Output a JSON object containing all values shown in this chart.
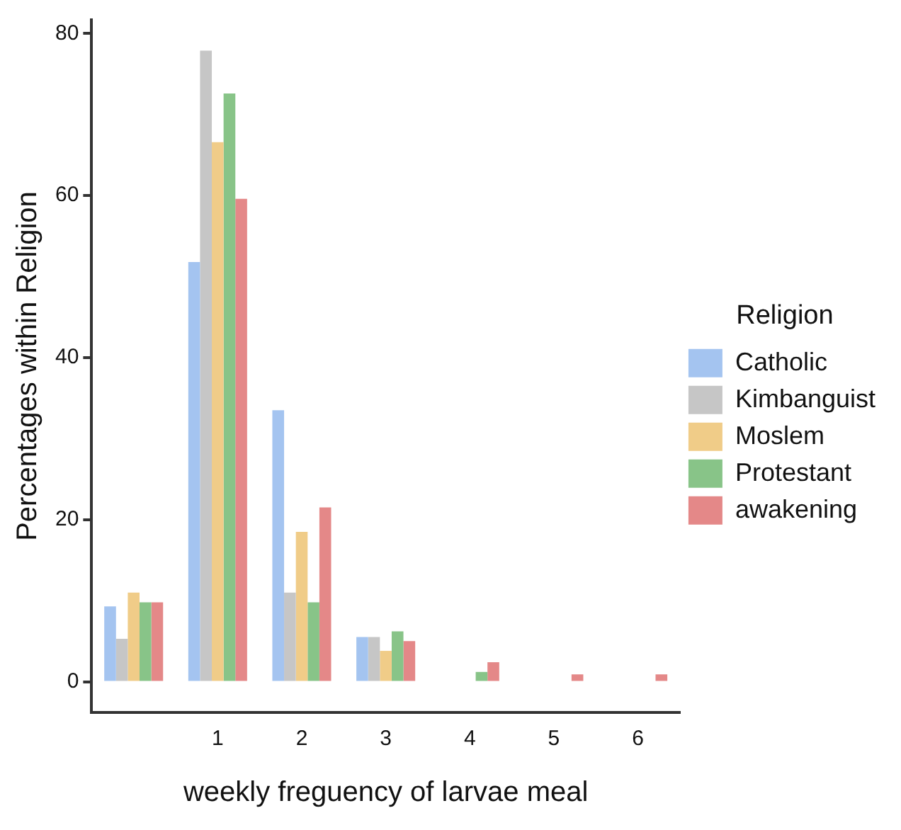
{
  "chart_data": {
    "type": "bar",
    "xlabel": "weekly freguency of larvae meal",
    "ylabel": "Percentages within Religion",
    "legend_title": "Religion",
    "categories": [
      null,
      "1",
      "2",
      "3",
      "4",
      "5",
      "6"
    ],
    "series": [
      {
        "name": "Catholic",
        "color": "#a4c4f0",
        "values": [
          9.3,
          51.8,
          33.5,
          5.5,
          null,
          null,
          null
        ]
      },
      {
        "name": "Kimbanguist",
        "color": "#c6c6c6",
        "values": [
          5.3,
          77.9,
          11,
          5.5,
          null,
          null,
          null
        ]
      },
      {
        "name": "Moslem",
        "color": "#f0cc88",
        "values": [
          11,
          66.6,
          18.5,
          3.8,
          null,
          null,
          null
        ]
      },
      {
        "name": "Protestant",
        "color": "#88c488",
        "values": [
          9.8,
          72.6,
          9.8,
          6.2,
          1.2,
          null,
          null
        ]
      },
      {
        "name": "awakening",
        "color": "#e48888",
        "values": [
          9.8,
          59.6,
          21.5,
          5,
          2.4,
          0.9,
          0.9
        ]
      }
    ],
    "ylim": [
      -3.8,
      81.7
    ],
    "yticks": [
      0,
      20,
      40,
      60,
      80
    ],
    "grid": false,
    "legend": "right"
  }
}
